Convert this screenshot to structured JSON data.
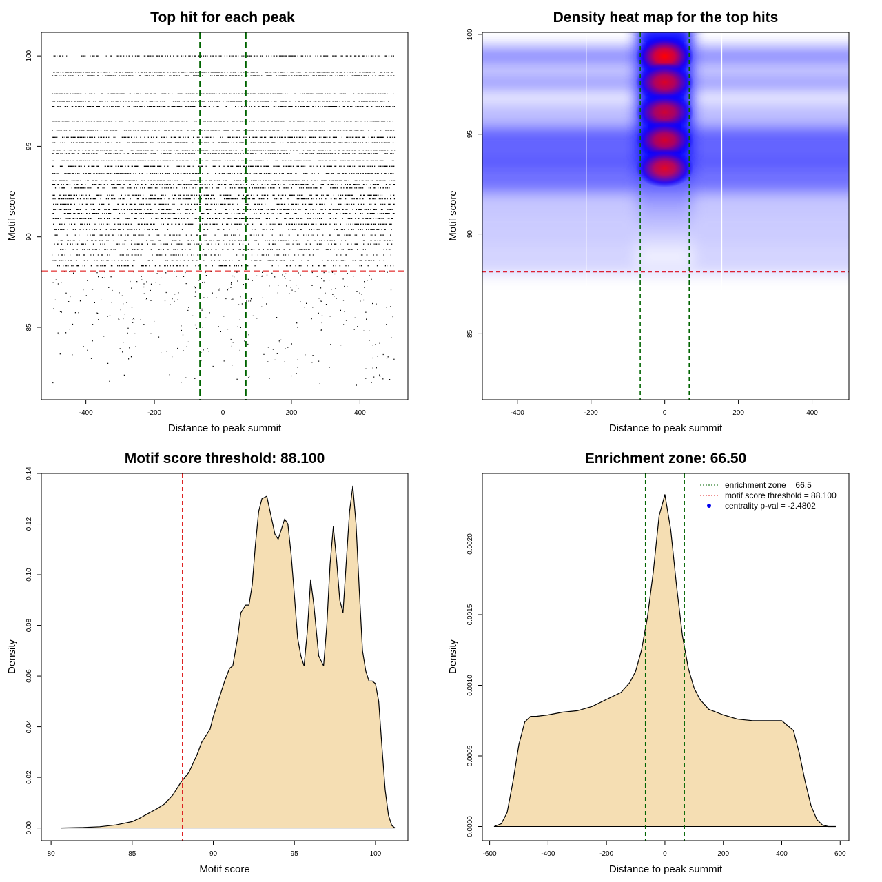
{
  "chart_data": [
    {
      "type": "scatter",
      "title": "Top hit for each peak",
      "xlabel": "Distance to peak summit",
      "ylabel": "Motif score",
      "xlim": [
        -530,
        540
      ],
      "ylim": [
        81,
        101.3
      ],
      "xticks": [
        -400,
        -200,
        0,
        200,
        400
      ],
      "yticks": [
        85,
        90,
        95,
        100
      ],
      "vlines": [
        -66.5,
        66.5
      ],
      "vline_color": "#006400",
      "hline": 88.1,
      "hline_color": "#dd0000",
      "point_color": "#000000",
      "x_range": [
        -500,
        500
      ],
      "score_levels": [
        100,
        99.1,
        98.9,
        97.9,
        97.5,
        97.2,
        96.4,
        95.9,
        95.5,
        95.2,
        94.8,
        94.6,
        94.2,
        93.9,
        93.5,
        93.1,
        92.9,
        92.7,
        92.3,
        92.1,
        91.8,
        91.5,
        91.3,
        91.0,
        90.7,
        90.4,
        90.1,
        89.8,
        89.6,
        89.3,
        89.0,
        88.7,
        88.4
      ]
    },
    {
      "type": "heatmap",
      "title": "Density heat map for the top hits",
      "xlabel": "Distance to peak summit",
      "ylabel": "Motif score",
      "xlim": [
        -495,
        500
      ],
      "ylim": [
        81.7,
        100.1
      ],
      "xticks": [
        -400,
        -200,
        0,
        200,
        400
      ],
      "yticks": [
        85,
        90,
        95,
        100
      ],
      "vlines": [
        -66.5,
        66.5
      ],
      "vline_color": "#006400",
      "hline": 88.1,
      "hline_color": "#dd2233",
      "white_lines": [
        -213,
        155
      ],
      "hotspots": [
        {
          "x": 0,
          "y": 98.9,
          "level": 1.0
        },
        {
          "x": 0,
          "y": 97.6,
          "level": 0.7
        },
        {
          "x": 0,
          "y": 96.1,
          "level": 0.6
        },
        {
          "x": 0,
          "y": 94.7,
          "level": 0.65
        },
        {
          "x": 0,
          "y": 93.3,
          "level": 0.7
        }
      ],
      "colors": [
        "#ffffff",
        "#0000ff",
        "#ff0000"
      ]
    },
    {
      "type": "area",
      "title": "Motif score threshold: 88.100",
      "xlabel": "Motif score",
      "ylabel": "Density",
      "xlim": [
        79.4,
        102
      ],
      "ylim": [
        -0.005,
        0.14
      ],
      "xticks": [
        80,
        85,
        90,
        95,
        100
      ],
      "yticks": [
        0.0,
        0.02,
        0.04,
        0.06,
        0.08,
        0.1,
        0.12,
        0.14
      ],
      "ytick_labels": [
        "0.00",
        "0.02",
        "0.04",
        "0.06",
        "0.08",
        "0.10",
        "0.12",
        "0.14"
      ],
      "vline": 88.1,
      "vline_color": "#dd2222",
      "fill": "#f5deb3",
      "x": [
        80.6,
        82,
        83,
        84,
        85,
        85.5,
        86,
        86.5,
        87,
        87.5,
        88,
        88.5,
        89,
        89.3,
        89.5,
        89.8,
        90,
        90.3,
        90.7,
        91,
        91.2,
        91.5,
        91.7,
        92,
        92.2,
        92.4,
        92.6,
        92.8,
        93,
        93.3,
        93.6,
        93.8,
        94,
        94.2,
        94.4,
        94.6,
        94.8,
        95,
        95.2,
        95.4,
        95.6,
        95.8,
        96,
        96.2,
        96.5,
        96.8,
        97,
        97.2,
        97.4,
        97.6,
        97.8,
        98,
        98.2,
        98.4,
        98.6,
        98.8,
        99,
        99.2,
        99.4,
        99.6,
        99.8,
        100,
        100.2,
        100.4,
        100.6,
        100.8,
        101,
        101.2
      ],
      "y": [
        0.0,
        0.0002,
        0.0005,
        0.0012,
        0.0025,
        0.004,
        0.0058,
        0.0075,
        0.0095,
        0.013,
        0.018,
        0.022,
        0.029,
        0.034,
        0.036,
        0.039,
        0.044,
        0.05,
        0.058,
        0.063,
        0.064,
        0.075,
        0.085,
        0.088,
        0.088,
        0.096,
        0.112,
        0.125,
        0.13,
        0.131,
        0.122,
        0.116,
        0.114,
        0.118,
        0.122,
        0.12,
        0.108,
        0.092,
        0.075,
        0.068,
        0.064,
        0.078,
        0.098,
        0.088,
        0.068,
        0.064,
        0.08,
        0.104,
        0.119,
        0.106,
        0.09,
        0.085,
        0.105,
        0.125,
        0.135,
        0.12,
        0.094,
        0.07,
        0.062,
        0.058,
        0.058,
        0.057,
        0.05,
        0.032,
        0.015,
        0.005,
        0.001,
        0.0
      ]
    },
    {
      "type": "area",
      "title": "Enrichment zone: 66.50",
      "xlabel": "Distance to peak summit",
      "ylabel": "Density",
      "xlim": [
        -625,
        630
      ],
      "ylim": [
        -0.0001,
        0.0025
      ],
      "xticks": [
        -600,
        -400,
        -200,
        0,
        200,
        400,
        600
      ],
      "yticks": [
        0.0,
        0.0005,
        0.001,
        0.0015,
        0.002
      ],
      "ytick_labels": [
        "0.0000",
        "0.0005",
        "0.0010",
        "0.0015",
        "0.0020"
      ],
      "vlines": [
        -66.5,
        66.5
      ],
      "vline_color": "#006400",
      "fill": "#f5deb3",
      "legend_position": "top-right",
      "legend": [
        {
          "label": "enrichment zone = 66.5",
          "color": "#006400",
          "marker": "dotted-line"
        },
        {
          "label": "motif score threshold = 88.100",
          "color": "#dd2222",
          "marker": "dotted-line"
        },
        {
          "label": "centrality p-val = -2.4802",
          "color": "#0000ee",
          "marker": "dot"
        }
      ],
      "x": [
        -585,
        -560,
        -540,
        -520,
        -500,
        -480,
        -460,
        -440,
        -400,
        -350,
        -300,
        -250,
        -200,
        -150,
        -120,
        -100,
        -80,
        -60,
        -40,
        -20,
        0,
        20,
        40,
        60,
        80,
        100,
        120,
        150,
        200,
        250,
        300,
        350,
        400,
        440,
        460,
        480,
        500,
        520,
        540,
        560,
        585
      ],
      "y": [
        0.0,
        2e-05,
        0.0001,
        0.00032,
        0.00058,
        0.00074,
        0.00078,
        0.00078,
        0.00079,
        0.00081,
        0.00082,
        0.00085,
        0.0009,
        0.00095,
        0.00102,
        0.0011,
        0.00125,
        0.00148,
        0.0018,
        0.0022,
        0.00235,
        0.0021,
        0.0017,
        0.00135,
        0.00112,
        0.00098,
        0.0009,
        0.00083,
        0.00079,
        0.00076,
        0.00075,
        0.00075,
        0.00075,
        0.00068,
        0.00052,
        0.00032,
        0.00015,
        5e-05,
        1e-05,
        0.0,
        0.0
      ]
    }
  ]
}
